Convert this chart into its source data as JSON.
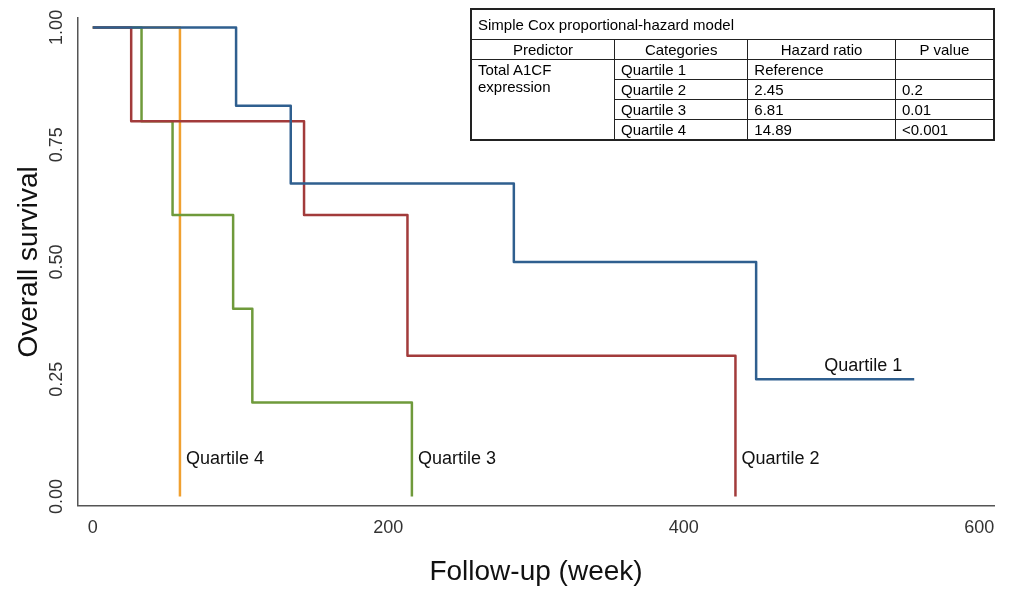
{
  "chart_data": {
    "type": "step",
    "xlabel": "Follow-up (week)",
    "ylabel": "Overall survival",
    "legend": false,
    "grid": false,
    "xlim": [
      -10,
      610
    ],
    "xticks": [
      0,
      200,
      400,
      600
    ],
    "ylim": [
      -0.02,
      1.02
    ],
    "yticks": [
      {
        "value": 0,
        "label": "0.00"
      },
      {
        "value": 0.25,
        "label": "0.25"
      },
      {
        "value": 0.5,
        "label": "0.50"
      },
      {
        "value": 0.75,
        "label": "0.75"
      },
      {
        "value": 1,
        "label": "1.00"
      }
    ],
    "series": [
      {
        "name": "Quartile 1",
        "color": "#2f5f8f",
        "x": [
          0,
          97,
          134,
          285,
          449,
          556
        ],
        "values": [
          1,
          0.833,
          0.667,
          0.5,
          0.25,
          0.25
        ]
      },
      {
        "name": "Quartile 2",
        "color": "#a23b3b",
        "x": [
          0,
          26,
          143,
          213,
          435
        ],
        "values": [
          1,
          0.8,
          0.6,
          0.3,
          0
        ]
      },
      {
        "name": "Quartile 3",
        "color": "#6f9a3b",
        "x": [
          0,
          33,
          54,
          95,
          108,
          216
        ],
        "values": [
          1,
          0.8,
          0.6,
          0.4,
          0.2,
          0
        ]
      },
      {
        "name": "Quartile 4",
        "color": "#f0a030",
        "x": [
          0,
          59
        ],
        "values": [
          1,
          0
        ]
      }
    ],
    "annotations": [
      "Simple Cox proportional-hazard model",
      "Predictor",
      "Categories",
      "Hazard ratio",
      "P value",
      "Total A1CF expression",
      "Quartile 1",
      "Reference",
      "Quartile 2",
      "2.45",
      "0.2",
      "Quartile 3",
      "6.81",
      "0.01",
      "Quartile 4",
      "14.89",
      "<0.001"
    ]
  }
}
